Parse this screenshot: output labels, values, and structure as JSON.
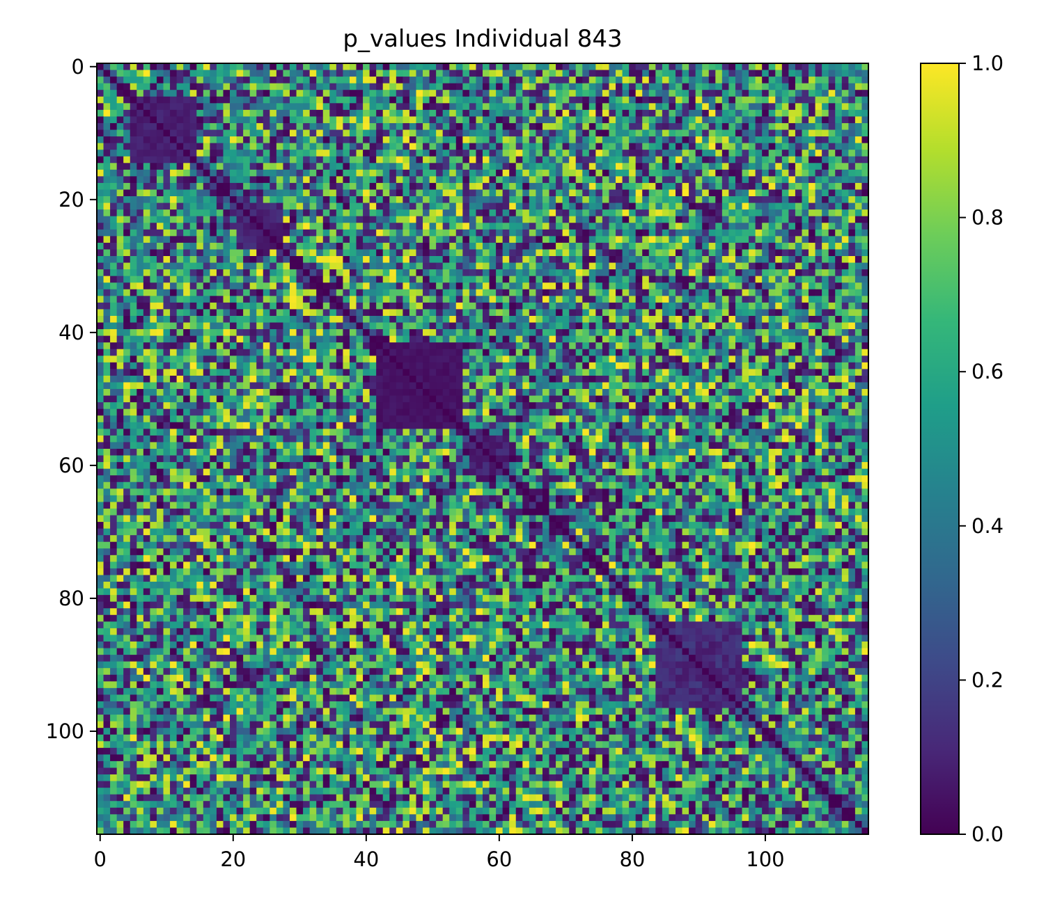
{
  "chart_data": {
    "type": "heatmap",
    "title": "p_values Individual 843",
    "matrix_size": 116,
    "x_ticks": [
      0,
      20,
      40,
      60,
      80,
      100
    ],
    "y_ticks": [
      0,
      20,
      40,
      60,
      80,
      100
    ],
    "xlim": [
      -0.5,
      115.5
    ],
    "ylim": [
      115.5,
      -0.5
    ],
    "colormap": "viridis",
    "color_range": [
      0.0,
      1.0
    ],
    "colorbar_ticks": [
      "0.0",
      "0.2",
      "0.4",
      "0.6",
      "0.8",
      "1.0"
    ],
    "colorbar_tick_values": [
      0.0,
      0.2,
      0.4,
      0.6,
      0.8,
      1.0
    ],
    "diagonal_value": 0.0,
    "low_value_blocks": [
      {
        "rows": [
          5,
          14
        ],
        "cols": [
          5,
          14
        ],
        "approx_value": 0.08
      },
      {
        "rows": [
          21,
          27
        ],
        "cols": [
          21,
          27
        ],
        "approx_value": 0.1
      },
      {
        "rows": [
          42,
          54
        ],
        "cols": [
          42,
          54
        ],
        "approx_value": 0.05
      },
      {
        "rows": [
          56,
          61
        ],
        "cols": [
          56,
          61
        ],
        "approx_value": 0.1
      },
      {
        "rows": [
          84,
          96
        ],
        "cols": [
          84,
          96
        ],
        "approx_value": 0.12
      }
    ],
    "typical_value_range": [
      0.0,
      1.0
    ],
    "note_values_estimated": true
  }
}
